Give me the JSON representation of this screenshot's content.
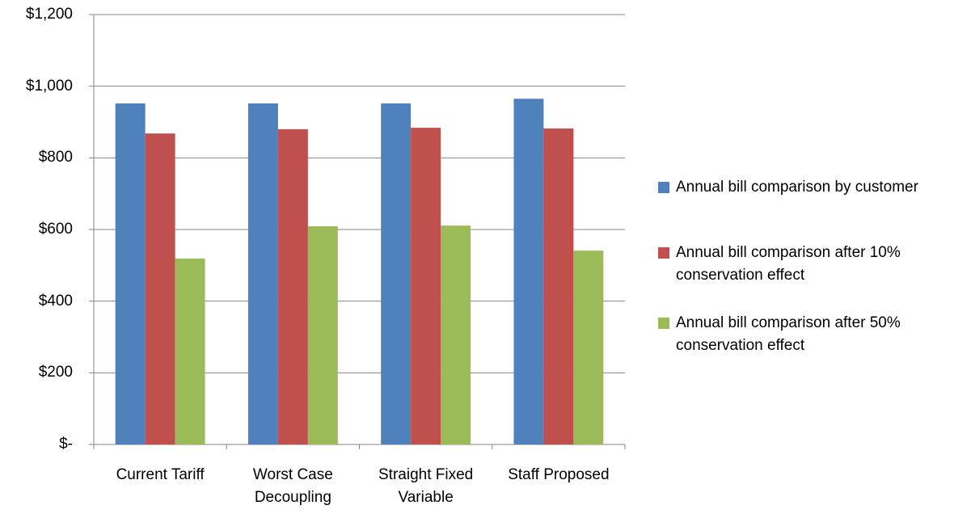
{
  "chart_data": {
    "type": "bar",
    "categories": [
      "Current Tariff",
      "Worst Case Decoupling",
      "Straight Fixed Variable",
      "Staff Proposed"
    ],
    "series": [
      {
        "name": "Annual bill comparison by customer",
        "color": "#4f81bd",
        "values": [
          952,
          952,
          952,
          965
        ]
      },
      {
        "name": "Annual bill comparison after 10% conservation effect",
        "color": "#c0504d",
        "values": [
          868,
          880,
          884,
          882
        ]
      },
      {
        "name": "Annual bill comparison after 50% conservation effect",
        "color": "#9bbb59",
        "values": [
          519,
          609,
          611,
          541
        ]
      }
    ],
    "ylim": [
      0,
      1200
    ],
    "yticks": [
      {
        "value": 0,
        "label": "$-"
      },
      {
        "value": 200,
        "label": "$200"
      },
      {
        "value": 400,
        "label": "$400"
      },
      {
        "value": 600,
        "label": "$600"
      },
      {
        "value": 800,
        "label": "$800"
      },
      {
        "value": 1000,
        "label": "$1,000"
      },
      {
        "value": 1200,
        "label": "$1,200"
      }
    ],
    "grid": true,
    "legend": "right"
  }
}
